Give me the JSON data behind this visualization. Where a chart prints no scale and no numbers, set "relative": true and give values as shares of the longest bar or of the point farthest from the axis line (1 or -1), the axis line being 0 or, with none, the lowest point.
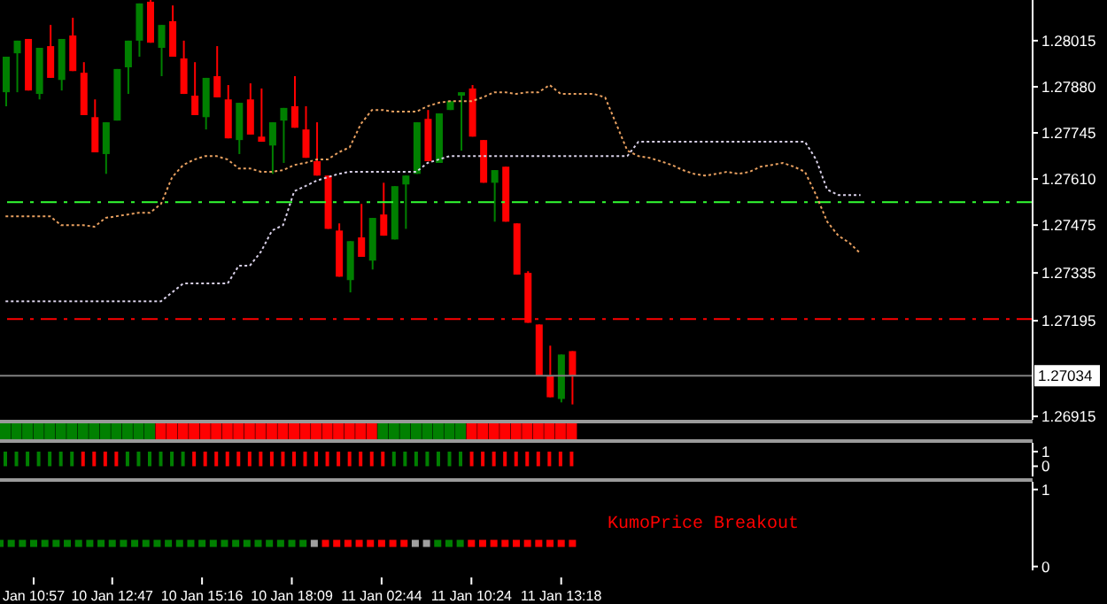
{
  "chart_data": [
    {
      "type": "candlestick",
      "tick_labels": "y",
      "line_style": "dotted",
      "categories": [
        null,
        null,
        null,
        null,
        null,
        null,
        null,
        null,
        null,
        null,
        null,
        null,
        null,
        null,
        null,
        null,
        null,
        null,
        null,
        null,
        null,
        null,
        null,
        null,
        null,
        null,
        null,
        null,
        null,
        null,
        null,
        null,
        null,
        null,
        null,
        null,
        null,
        null,
        null,
        null,
        null,
        null,
        null,
        null,
        null,
        null,
        null,
        null,
        null,
        null,
        null,
        null,
        null,
        null,
        null,
        null,
        null,
        null,
        null,
        null,
        null,
        null,
        null,
        null,
        null,
        null,
        null,
        null,
        null,
        null,
        null,
        null,
        null,
        null,
        null,
        null,
        null,
        null,
        null,
        null,
        null,
        null,
        null,
        null,
        null,
        null,
        null,
        null,
        null,
        null,
        null,
        null,
        null
      ],
      "ohlc": [
        [
          1.27864,
          1.27968,
          1.27823,
          1.27968
        ],
        [
          1.27978,
          1.28015,
          1.27864,
          1.28015
        ],
        [
          1.2802,
          1.2802,
          1.27869,
          1.27869
        ],
        [
          1.27859,
          1.27994,
          1.27843,
          1.27994
        ],
        [
          1.27999,
          1.28061,
          1.27906,
          1.27906
        ],
        [
          1.279,
          1.2802,
          1.27869,
          1.2802
        ],
        [
          1.2803,
          1.28082,
          1.27926,
          1.27926
        ],
        [
          1.27921,
          1.27952,
          1.27797,
          1.27797
        ],
        [
          1.27791,
          1.27843,
          1.27688,
          1.27688
        ],
        [
          1.27683,
          1.27776,
          1.27625,
          1.27776
        ],
        [
          1.27781,
          1.27932,
          1.27781,
          1.27932
        ],
        [
          1.27937,
          1.28015,
          1.27859,
          1.28015
        ],
        [
          1.28015,
          1.28124,
          1.27968,
          1.28124
        ],
        [
          1.28129,
          1.28134,
          1.28009,
          1.28009
        ],
        [
          1.27994,
          1.28061,
          1.27911,
          1.28061
        ],
        [
          1.28072,
          1.28118,
          1.27968,
          1.27968
        ],
        [
          1.27963,
          1.28015,
          1.27859,
          1.27859
        ],
        [
          1.27854,
          1.27952,
          1.27797,
          1.27797
        ],
        [
          1.27791,
          1.27906,
          1.27755,
          1.27906
        ],
        [
          1.27911,
          1.27999,
          1.27849,
          1.27849
        ],
        [
          1.27843,
          1.27885,
          1.27729,
          1.27729
        ],
        [
          1.27724,
          1.27833,
          1.27683,
          1.27833
        ],
        [
          1.27843,
          1.2789,
          1.2774,
          1.2774
        ],
        [
          1.27734,
          1.27875,
          1.27719,
          1.27719
        ],
        [
          1.27708,
          1.27776,
          1.27625,
          1.27776
        ],
        [
          1.27781,
          1.27818,
          1.27657,
          1.27818
        ],
        [
          1.27823,
          1.27911,
          1.2776,
          1.2776
        ],
        [
          1.27755,
          1.27823,
          1.27672,
          1.27672
        ],
        [
          1.27662,
          1.27776,
          1.2762,
          1.2762
        ],
        [
          1.2762,
          1.2762,
          1.27464,
          1.27464
        ],
        [
          1.27459,
          1.2748,
          1.27324,
          1.27324
        ],
        [
          1.27314,
          1.27428,
          1.27278,
          1.27428
        ],
        [
          1.27439,
          1.27537,
          1.27382,
          1.27382
        ],
        [
          1.27371,
          1.27496,
          1.27345,
          1.27496
        ],
        [
          1.27506,
          1.27599,
          1.27444,
          1.27444
        ],
        [
          1.27433,
          1.27589,
          1.27433,
          1.27589
        ],
        [
          1.27594,
          1.2762,
          1.27464,
          1.2762
        ],
        [
          1.27625,
          1.27776,
          1.27625,
          1.27776
        ],
        [
          1.27786,
          1.27812,
          1.27662,
          1.27662
        ],
        [
          1.27657,
          1.27802,
          1.27657,
          1.27802
        ],
        [
          1.27812,
          1.27838,
          1.27812,
          1.27838
        ],
        [
          1.27854,
          1.27864,
          1.27693,
          1.27864
        ],
        [
          1.27875,
          1.27885,
          1.27734,
          1.27734
        ],
        [
          1.27724,
          1.27724,
          1.27599,
          1.27599
        ],
        [
          1.27599,
          1.27636,
          1.27485,
          1.27636
        ],
        [
          1.27646,
          1.27646,
          1.27485,
          1.27485
        ],
        [
          1.2748,
          1.2748,
          1.2733,
          1.2733
        ],
        [
          1.27335,
          1.2734,
          1.27189,
          1.27189
        ],
        [
          1.27184,
          1.27184,
          1.27034,
          1.27034
        ],
        [
          1.27034,
          1.27122,
          1.26971,
          1.26971
        ],
        [
          1.26966,
          1.27096,
          1.26956,
          1.27096
        ],
        [
          1.27106,
          1.27106,
          1.2695,
          1.27034
        ],
        null,
        null,
        null,
        null,
        null,
        null,
        null,
        null,
        null,
        null,
        null,
        null,
        null,
        null,
        null,
        null,
        null,
        null,
        null,
        null,
        null,
        null,
        null,
        null,
        null,
        null,
        null,
        null,
        null,
        null,
        null,
        null,
        null,
        null,
        null,
        null,
        null,
        null,
        null,
        null,
        null
      ],
      "colors": [
        "#008000",
        "#008000",
        "#ff0000",
        "#008000",
        "#ff0000",
        "#008000",
        "#ff0000",
        "#ff0000",
        "#ff0000",
        "#008000",
        "#008000",
        "#008000",
        "#008000",
        "#ff0000",
        "#008000",
        "#ff0000",
        "#ff0000",
        "#ff0000",
        "#008000",
        "#ff0000",
        "#ff0000",
        "#008000",
        "#ff0000",
        "#ff0000",
        "#008000",
        "#008000",
        "#ff0000",
        "#ff0000",
        "#ff0000",
        "#ff0000",
        "#ff0000",
        "#008000",
        "#ff0000",
        "#008000",
        "#ff0000",
        "#008000",
        "#008000",
        "#008000",
        "#ff0000",
        "#008000",
        "#008000",
        "#008000",
        "#ff0000",
        "#ff0000",
        "#008000",
        "#ff0000",
        "#ff0000",
        "#ff0000",
        "#ff0000",
        "#ff0000",
        "#008000",
        "#ff0000",
        null,
        null,
        null,
        null,
        null,
        null,
        null,
        null,
        null,
        null,
        null,
        null,
        null,
        null,
        null,
        null,
        null,
        null,
        null,
        null,
        null,
        null,
        null,
        null,
        null,
        null,
        null,
        null,
        null,
        null,
        null,
        null,
        null,
        null,
        null,
        null,
        null,
        null,
        null,
        null,
        null
      ],
      "series": [
        {
          "type": "line",
          "color": "#e8a060",
          "values": [
            1.27501,
            1.27501,
            1.27501,
            1.27501,
            1.27501,
            1.27475,
            1.27475,
            1.27475,
            1.2747,
            1.27496,
            1.27501,
            1.27506,
            1.27511,
            1.27511,
            1.27537,
            1.27615,
            1.27651,
            1.27667,
            1.27677,
            1.27677,
            1.27667,
            1.27641,
            1.27641,
            1.27631,
            1.27631,
            1.27636,
            1.27651,
            1.27657,
            1.27667,
            1.27667,
            1.27688,
            1.27703,
            1.27771,
            1.27812,
            1.27812,
            1.27807,
            1.27807,
            1.27807,
            1.27823,
            1.27833,
            1.27838,
            1.27838,
            1.27838,
            1.27849,
            1.27864,
            1.27864,
            1.27859,
            1.27864,
            1.27864,
            1.27885,
            1.27859,
            1.27859,
            1.27859,
            1.27859,
            1.27849,
            1.27771,
            1.27693,
            1.27677,
            1.27672,
            1.27662,
            1.27651,
            1.27636,
            1.27625,
            1.2762,
            1.27625,
            1.27631,
            1.27625,
            1.27631,
            1.27646,
            1.27651,
            1.27657,
            1.27646,
            1.27631,
            1.27563,
            1.27485,
            1.27444,
            1.27423,
            1.27392,
            null,
            null,
            null,
            null,
            null,
            null,
            null,
            null,
            null,
            null,
            null,
            null,
            null,
            null,
            null
          ]
        },
        {
          "type": "line",
          "color": "#d8d0e8",
          "values": [
            1.27252,
            1.27252,
            1.27252,
            1.27252,
            1.27252,
            1.27252,
            1.27252,
            1.27252,
            1.27252,
            1.27252,
            1.27252,
            1.27252,
            1.27252,
            1.27252,
            1.27252,
            1.27278,
            1.27304,
            1.27304,
            1.27304,
            1.27304,
            1.27304,
            1.27356,
            1.27356,
            1.27397,
            1.27459,
            1.27475,
            1.27574,
            1.27589,
            1.27605,
            1.27615,
            1.27625,
            1.27631,
            1.27631,
            1.27631,
            1.27631,
            1.27631,
            1.27631,
            1.27631,
            1.27657,
            1.27667,
            1.27677,
            1.27677,
            1.27677,
            1.27677,
            1.27677,
            1.27677,
            1.27677,
            1.27677,
            1.27677,
            1.27677,
            1.27677,
            1.27677,
            1.27677,
            1.27677,
            1.27677,
            1.27677,
            1.27677,
            1.27719,
            1.27719,
            1.27719,
            1.27719,
            1.27719,
            1.27719,
            1.27719,
            1.27719,
            1.27719,
            1.27719,
            1.27719,
            1.27719,
            1.27719,
            1.27719,
            1.27719,
            1.27719,
            1.27667,
            1.27579,
            1.27563,
            1.27563,
            1.27563,
            null,
            null,
            null,
            null,
            null,
            null,
            null,
            null,
            null,
            null,
            null,
            null,
            null,
            null,
            null
          ]
        }
      ],
      "ylim": [
        1.26905,
        1.28134
      ],
      "yticks": [
        1.28015,
        {
          "value": 1.2788,
          "label": "1.27880"
        },
        1.27745,
        {
          "value": 1.2761,
          "label": "1.27610"
        },
        1.27475,
        1.27335,
        1.27195,
        1.26915
      ],
      "ref_lines": [
        {
          "axis": "y",
          "value": 1.27542,
          "color": "#33ff33",
          "line_style": "dashed"
        },
        {
          "axis": "y",
          "value": 1.272,
          "color": "#ff0000",
          "line_style": "dashed"
        },
        {
          "axis": "y",
          "value": 1.27034,
          "color": "#808080",
          "line_style": "solid",
          "label": "1.27034"
        }
      ]
    },
    {
      "type": "bar",
      "relative": true,
      "tick_labels": false,
      "categories": [
        null,
        null,
        null,
        null,
        null,
        null,
        null,
        null,
        null,
        null,
        null,
        null,
        null,
        null,
        null,
        null,
        null,
        null,
        null,
        null,
        null,
        null,
        null,
        null,
        null,
        null,
        null,
        null,
        null,
        null,
        null,
        null,
        null,
        null,
        null,
        null,
        null,
        null,
        null,
        null,
        null,
        null,
        null,
        null,
        null,
        null,
        null,
        null,
        null,
        null,
        null,
        null,
        null,
        null,
        null,
        null,
        null,
        null,
        null,
        null,
        null,
        null,
        null,
        null,
        null,
        null,
        null,
        null,
        null,
        null,
        null,
        null,
        null,
        null,
        null,
        null,
        null,
        null,
        null,
        null,
        null,
        null,
        null,
        null,
        null,
        null,
        null,
        null,
        null,
        null,
        null,
        null,
        null
      ],
      "values": [
        1,
        1,
        1,
        1,
        1,
        1,
        1,
        1,
        1,
        1,
        1,
        1,
        1,
        1,
        1,
        1,
        1,
        1,
        1,
        1,
        1,
        1,
        1,
        1,
        1,
        1,
        1,
        1,
        1,
        1,
        1,
        1,
        1,
        1,
        1,
        1,
        1,
        1,
        1,
        1,
        1,
        1,
        1,
        1,
        1,
        1,
        1,
        1,
        1,
        1,
        1,
        1,
        null,
        null,
        null,
        null,
        null,
        null,
        null,
        null,
        null,
        null,
        null,
        null,
        null,
        null,
        null,
        null,
        null,
        null,
        null,
        null,
        null,
        null,
        null,
        null,
        null,
        null,
        null,
        null,
        null,
        null,
        null,
        null,
        null,
        null,
        null,
        null,
        null,
        null,
        null,
        null,
        null
      ],
      "colors": [
        "#008000",
        "#008000",
        "#008000",
        "#008000",
        "#008000",
        "#008000",
        "#008000",
        "#008000",
        "#008000",
        "#008000",
        "#008000",
        "#008000",
        "#008000",
        "#008000",
        "#ff0000",
        "#ff0000",
        "#ff0000",
        "#ff0000",
        "#ff0000",
        "#ff0000",
        "#ff0000",
        "#ff0000",
        "#ff0000",
        "#ff0000",
        "#ff0000",
        "#ff0000",
        "#ff0000",
        "#ff0000",
        "#ff0000",
        "#ff0000",
        "#ff0000",
        "#ff0000",
        "#ff0000",
        "#ff0000",
        "#008000",
        "#008000",
        "#008000",
        "#008000",
        "#008000",
        "#008000",
        "#008000",
        "#008000",
        "#ff0000",
        "#ff0000",
        "#ff0000",
        "#ff0000",
        "#ff0000",
        "#ff0000",
        "#ff0000",
        "#ff0000",
        "#ff0000",
        "#ff0000",
        null,
        null,
        null,
        null,
        null,
        null,
        null,
        null,
        null,
        null,
        null,
        null,
        null,
        null,
        null,
        null,
        null,
        null,
        null,
        null,
        null,
        null,
        null,
        null,
        null,
        null,
        null,
        null,
        null,
        null,
        null,
        null,
        null,
        null,
        null,
        null,
        null,
        null,
        null,
        null,
        null
      ]
    },
    {
      "type": "bar",
      "tick_labels": "y",
      "ylim": [
        -0.7,
        1.6
      ],
      "yticks": [
        1,
        0
      ],
      "categories": [
        null,
        null,
        null,
        null,
        null,
        null,
        null,
        null,
        null,
        null,
        null,
        null,
        null,
        null,
        null,
        null,
        null,
        null,
        null,
        null,
        null,
        null,
        null,
        null,
        null,
        null,
        null,
        null,
        null,
        null,
        null,
        null,
        null,
        null,
        null,
        null,
        null,
        null,
        null,
        null,
        null,
        null,
        null,
        null,
        null,
        null,
        null,
        null,
        null,
        null,
        null,
        null,
        null,
        null,
        null,
        null,
        null,
        null,
        null,
        null,
        null,
        null,
        null,
        null,
        null,
        null,
        null,
        null,
        null,
        null,
        null,
        null,
        null,
        null,
        null,
        null,
        null,
        null,
        null,
        null,
        null,
        null,
        null,
        null,
        null,
        null,
        null,
        null,
        null,
        null,
        null,
        null,
        null
      ],
      "values": [
        1,
        1,
        1,
        1,
        1,
        1,
        1,
        1,
        1,
        1,
        1,
        1,
        1,
        1,
        1,
        1,
        1,
        1,
        1,
        1,
        1,
        1,
        1,
        1,
        1,
        1,
        1,
        1,
        1,
        1,
        1,
        1,
        1,
        1,
        1,
        1,
        1,
        1,
        1,
        1,
        1,
        1,
        1,
        1,
        1,
        1,
        1,
        1,
        1,
        1,
        1,
        1,
        null,
        null,
        null,
        null,
        null,
        null,
        null,
        null,
        null,
        null,
        null,
        null,
        null,
        null,
        null,
        null,
        null,
        null,
        null,
        null,
        null,
        null,
        null,
        null,
        null,
        null,
        null,
        null,
        null,
        null,
        null,
        null,
        null,
        null,
        null,
        null,
        null,
        null,
        null,
        null,
        null
      ],
      "colors": [
        "#008000",
        "#008000",
        "#008000",
        "#008000",
        "#008000",
        "#008000",
        "#008000",
        "#ff0000",
        "#ff0000",
        "#ff0000",
        "#ff0000",
        "#008000",
        "#008000",
        "#008000",
        "#008000",
        "#008000",
        "#008000",
        "#ff0000",
        "#ff0000",
        "#ff0000",
        "#ff0000",
        "#ff0000",
        "#ff0000",
        "#ff0000",
        "#ff0000",
        "#ff0000",
        "#ff0000",
        "#ff0000",
        "#ff0000",
        "#ff0000",
        "#ff0000",
        "#ff0000",
        "#ff0000",
        "#ff0000",
        "#ff0000",
        "#008000",
        "#008000",
        "#008000",
        "#008000",
        "#008000",
        "#008000",
        "#008000",
        "#ff0000",
        "#ff0000",
        "#ff0000",
        "#ff0000",
        "#ff0000",
        "#ff0000",
        "#ff0000",
        "#ff0000",
        "#ff0000",
        "#ff0000",
        null,
        null,
        null,
        null,
        null,
        null,
        null,
        null,
        null,
        null,
        null,
        null,
        null,
        null,
        null,
        null,
        null,
        null,
        null,
        null,
        null,
        null,
        null,
        null,
        null,
        null,
        null,
        null,
        null,
        null,
        null,
        null,
        null,
        null,
        null,
        null,
        null,
        null,
        null,
        null,
        null
      ]
    },
    {
      "type": "scatter",
      "marker": "square",
      "ylim": [
        -0.05,
        1.1
      ],
      "yticks": [
        1,
        0
      ],
      "categories": [
        null,
        null,
        null,
        "Jan 10:57",
        null,
        null,
        null,
        null,
        null,
        null,
        "10 Jan 12:47",
        null,
        null,
        null,
        null,
        null,
        null,
        null,
        "10 Jan 15:16",
        null,
        null,
        null,
        null,
        null,
        null,
        null,
        "10 Jan 18:09",
        null,
        null,
        null,
        null,
        null,
        null,
        null,
        "11 Jan 02:44",
        null,
        null,
        null,
        null,
        null,
        null,
        null,
        "11 Jan 10:24",
        null,
        null,
        null,
        null,
        null,
        null,
        null,
        "11 Jan 13:18",
        null,
        null,
        null,
        null,
        null,
        null,
        null,
        null,
        null,
        null,
        null,
        null,
        null,
        null,
        null,
        null,
        null,
        null,
        null,
        null,
        null,
        null,
        null,
        null,
        null,
        null,
        null,
        null,
        null,
        null,
        null,
        null,
        null,
        null,
        null,
        null,
        null,
        null,
        null,
        null,
        null,
        null
      ],
      "values": [
        0.3,
        0.3,
        0.3,
        0.3,
        0.3,
        0.3,
        0.3,
        0.3,
        0.3,
        0.3,
        0.3,
        0.3,
        0.3,
        0.3,
        0.3,
        0.3,
        0.3,
        0.3,
        0.3,
        0.3,
        0.3,
        0.3,
        0.3,
        0.3,
        0.3,
        0.3,
        0.3,
        0.3,
        0.3,
        0.3,
        0.3,
        0.3,
        0.3,
        0.3,
        0.3,
        0.3,
        0.3,
        0.3,
        0.3,
        0.3,
        0.3,
        0.3,
        0.3,
        0.3,
        0.3,
        0.3,
        0.3,
        0.3,
        0.3,
        0.3,
        0.3,
        0.3,
        null,
        null,
        null,
        null,
        null,
        null,
        null,
        null,
        null,
        null,
        null,
        null,
        null,
        null,
        null,
        null,
        null,
        null,
        null,
        null,
        null,
        null,
        null,
        null,
        null,
        null,
        null,
        null,
        null,
        null,
        null,
        null,
        null,
        null,
        null,
        null,
        null,
        null,
        null,
        null,
        null
      ],
      "colors": [
        "#008000",
        "#008000",
        "#008000",
        "#008000",
        "#008000",
        "#008000",
        "#008000",
        "#008000",
        "#008000",
        "#008000",
        "#008000",
        "#008000",
        "#008000",
        "#008000",
        "#008000",
        "#008000",
        "#008000",
        "#008000",
        "#008000",
        "#008000",
        "#008000",
        "#008000",
        "#008000",
        "#008000",
        "#008000",
        "#008000",
        "#008000",
        "#008000",
        "#a0a0a0",
        "#ff0000",
        "#ff0000",
        "#ff0000",
        "#ff0000",
        "#ff0000",
        "#ff0000",
        "#ff0000",
        "#ff0000",
        "#a0a0a0",
        "#a0a0a0",
        "#008000",
        "#008000",
        "#008000",
        "#ff0000",
        "#ff0000",
        "#ff0000",
        "#ff0000",
        "#ff0000",
        "#ff0000",
        "#ff0000",
        "#ff0000",
        "#ff0000",
        "#ff0000",
        null,
        null,
        null,
        null,
        null,
        null,
        null,
        null,
        null,
        null,
        null,
        null,
        null,
        null,
        null,
        null,
        null,
        null,
        null,
        null,
        null,
        null,
        null,
        null,
        null,
        null,
        null,
        null,
        null,
        null,
        null,
        null,
        null,
        null,
        null,
        null,
        null,
        null,
        null,
        null,
        null
      ],
      "annotations": [
        "KumoPrice Breakout"
      ]
    }
  ]
}
